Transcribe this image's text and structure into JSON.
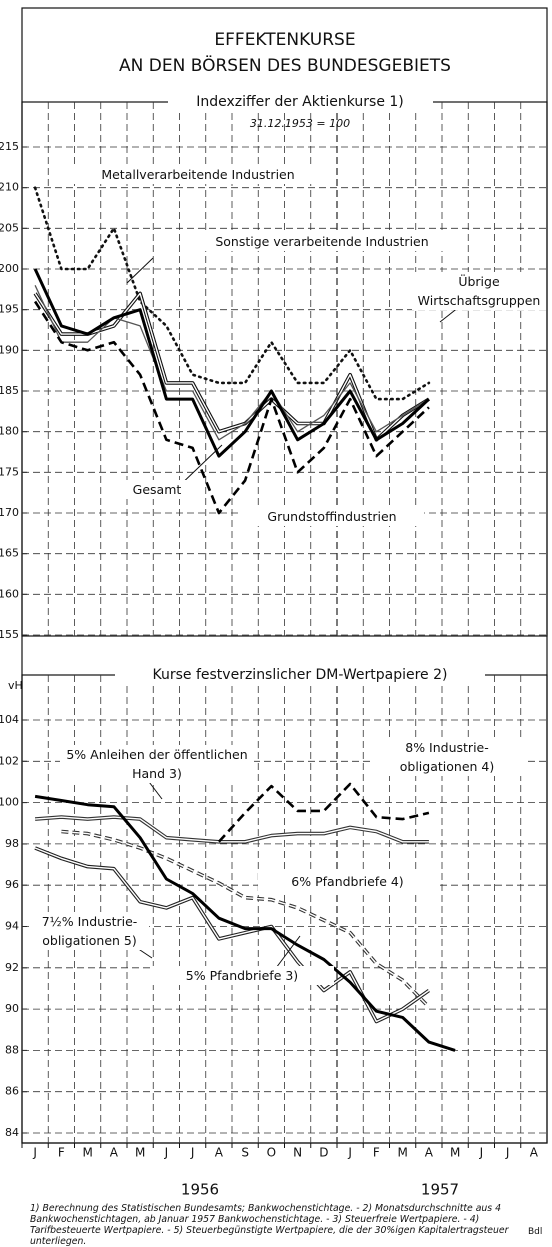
{
  "title": [
    "EFFEKTENKURSE",
    "AN DEN BÖRSEN DES BUNDESGEBIETS"
  ],
  "x_axis": {
    "categories": [
      "J",
      "F",
      "M",
      "A",
      "M",
      "J",
      "J",
      "A",
      "S",
      "O",
      "N",
      "D",
      "J",
      "F",
      "M",
      "A",
      "M",
      "J",
      "J",
      "A"
    ],
    "years": [
      "1956",
      "1957"
    ]
  },
  "chart_data": [
    {
      "type": "line",
      "title": "Indexziffer der Aktienkurse 1)",
      "subtitle": "31.12.1953 = 100",
      "ylim": [
        155,
        215
      ],
      "yticks": [
        155,
        160,
        165,
        170,
        175,
        180,
        185,
        190,
        195,
        200,
        205,
        210,
        215
      ],
      "grid": true,
      "series": [
        {
          "name": "Metallverarbeitende Industrien",
          "color": "#111",
          "style": "dotted",
          "values": [
            210,
            200,
            200,
            205,
            196,
            193,
            187,
            186,
            186,
            191,
            186,
            186,
            190,
            184,
            184,
            186,
            null,
            null,
            null,
            null
          ]
        },
        {
          "name": "Sonstige verarbeitende Industrien",
          "color": "#111",
          "style": "double",
          "values": [
            197,
            192,
            192,
            193,
            197,
            186,
            186,
            180,
            181,
            184,
            181,
            181,
            187,
            179,
            182,
            184,
            null,
            null,
            null,
            null
          ]
        },
        {
          "name": "Übrige Wirtschaftsgruppen",
          "color": "#555",
          "style": "thin",
          "values": [
            198,
            191,
            191,
            194,
            193,
            185,
            185,
            179,
            181,
            185,
            180,
            182,
            186,
            180,
            182,
            184,
            null,
            null,
            null,
            null
          ]
        },
        {
          "name": "Gesamt",
          "color": "#000",
          "style": "thick",
          "values": [
            200,
            193,
            192,
            194,
            195,
            184,
            184,
            177,
            180,
            185,
            179,
            181,
            185,
            179,
            181,
            184,
            null,
            null,
            null,
            null
          ]
        },
        {
          "name": "Grundstoffindustrien",
          "color": "#000",
          "style": "dashed",
          "values": [
            196,
            191,
            190,
            191,
            187,
            179,
            178,
            170,
            174,
            184,
            175,
            178,
            184,
            177,
            180,
            183,
            null,
            null,
            null,
            null
          ]
        }
      ]
    },
    {
      "type": "line",
      "title": "Kurse festverzinslicher DM-Wertpapiere 2)",
      "y_label": "vH",
      "ylim": [
        84,
        104
      ],
      "yticks": [
        84,
        86,
        88,
        90,
        92,
        94,
        96,
        98,
        100,
        102,
        104
      ],
      "grid": true,
      "series": [
        {
          "name": "5% Anleihen der öffentlichen Hand 3)",
          "color": "#333",
          "style": "double",
          "values": [
            99.2,
            99.3,
            99.2,
            99.3,
            99.2,
            98.3,
            98.2,
            98.1,
            98.1,
            98.4,
            98.5,
            98.5,
            98.8,
            98.6,
            98.1,
            98.1,
            null,
            null,
            null,
            null
          ]
        },
        {
          "name": "8% Industrie-obligationen 4)",
          "color": "#000",
          "style": "dashed",
          "values": [
            null,
            null,
            null,
            null,
            null,
            null,
            null,
            98.1,
            99.5,
            100.8,
            99.6,
            99.6,
            100.9,
            99.3,
            99.2,
            99.5,
            null,
            null,
            null,
            null
          ]
        },
        {
          "name": "6% Pfandbriefe 4)",
          "color": "#333",
          "style": "double-dashed",
          "values": [
            null,
            98.6,
            98.5,
            98.2,
            97.8,
            97.3,
            96.7,
            96.1,
            95.4,
            95.3,
            94.9,
            94.3,
            93.7,
            92.2,
            91.4,
            90.1,
            null,
            null,
            null,
            null
          ]
        },
        {
          "name": "7½% Industrie-obligationen 5)",
          "color": "#222",
          "style": "double",
          "values": [
            97.8,
            97.3,
            96.9,
            96.8,
            95.2,
            94.9,
            95.4,
            93.4,
            93.7,
            94.0,
            92.3,
            90.9,
            91.8,
            89.4,
            90.0,
            90.9,
            null,
            null,
            null,
            null
          ]
        },
        {
          "name": "5% Pfandbriefe 3)",
          "color": "#000",
          "style": "thick",
          "values": [
            100.3,
            100.1,
            99.9,
            99.8,
            98.3,
            96.3,
            95.6,
            94.4,
            93.9,
            93.9,
            93.1,
            92.4,
            91.3,
            89.9,
            89.6,
            88.4,
            88.0,
            null,
            null,
            null
          ]
        }
      ]
    }
  ],
  "footnote": "1) Berechnung des Statistischen Bundesamts; Bankwochenstichtage. - 2) Monatsdurchschnitte aus 4 Bankwochenstichtagen, ab Januar 1957 Bankwochenstichtage. - 3) Steuerfreie Wertpapiere. - 4) Tarifbesteuerte Wertpapiere. - 5) Steuerbegünstigte Wertpapiere, die der 30%igen Kapitalertragsteuer unterliegen.",
  "source": "Bdl"
}
